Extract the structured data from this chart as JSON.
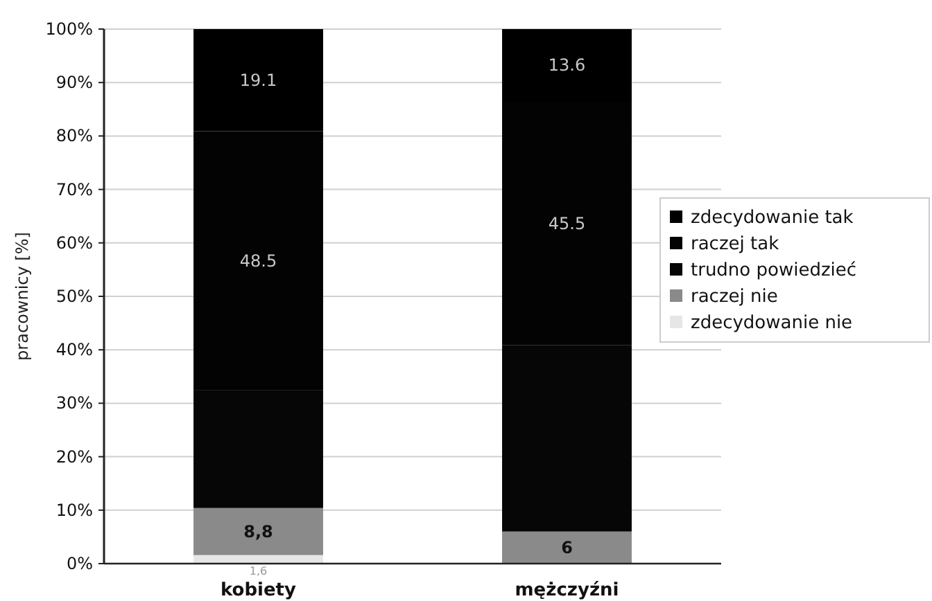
{
  "chart_data": {
    "type": "bar",
    "stacked": true,
    "ylabel": "pracownicy [%]",
    "categories": [
      "kobiety",
      "mężczyźni"
    ],
    "series": [
      {
        "name": "zdecydowanie nie",
        "color": "#e6e6e6",
        "values": [
          1.6,
          0
        ],
        "value_labels": [
          "1,6",
          null
        ]
      },
      {
        "name": "raczej nie",
        "color": "#8a8a8a",
        "values": [
          8.8,
          6
        ],
        "value_labels": [
          "8,8",
          "6"
        ]
      },
      {
        "name": "trudno powiedzieć",
        "color": "#060606",
        "values": [
          22.0,
          34.9
        ],
        "value_labels": [
          null,
          null
        ]
      },
      {
        "name": "raczej tak",
        "color": "#030303",
        "values": [
          48.5,
          45.5
        ],
        "value_labels": [
          "48.5",
          "45.5"
        ]
      },
      {
        "name": "zdecydowanie tak",
        "color": "#000000",
        "values": [
          19.1,
          13.6
        ],
        "value_labels": [
          "19.1",
          "13.6"
        ]
      }
    ],
    "ylim": [
      0,
      100
    ],
    "yticks": [
      {
        "value": 0,
        "label": "0%"
      },
      {
        "value": 10,
        "label": "10%"
      },
      {
        "value": 20,
        "label": "20%"
      },
      {
        "value": 30,
        "label": "30%"
      },
      {
        "value": 40,
        "label": "40%"
      },
      {
        "value": 50,
        "label": "50%"
      },
      {
        "value": 60,
        "label": "60%"
      },
      {
        "value": 70,
        "label": "70%"
      },
      {
        "value": 80,
        "label": "80%"
      },
      {
        "value": 90,
        "label": "90%"
      },
      {
        "value": 100,
        "label": "100%"
      }
    ],
    "grid": "y",
    "legend": "right"
  }
}
